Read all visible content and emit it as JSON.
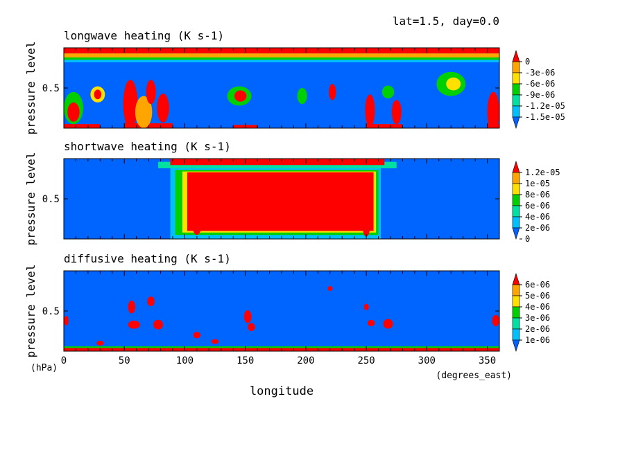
{
  "header": {
    "info": "lat=1.5, day=0.0"
  },
  "colors": {
    "red": "#ff0000",
    "orange": "#ffa500",
    "yellow": "#ffe000",
    "green": "#00d000",
    "teal": "#00e0a0",
    "cyan": "#00bfff",
    "blue": "#0064ff"
  },
  "chart_data": [
    {
      "type": "heatmap",
      "title": "longwave heating (K s-1)",
      "ylabel": "pressure level",
      "yticks": [
        "0.5"
      ],
      "xlabel": "",
      "xlim": [
        0,
        360
      ],
      "colorbar": {
        "labels": [
          "0",
          "-3e-06",
          "-6e-06",
          "-9e-06",
          "-1.2e-05",
          "-1.5e-05"
        ],
        "colors": [
          "#ff0000",
          "#ffa500",
          "#ffe000",
          "#00d000",
          "#00e0a0",
          "#00bfff",
          "#0064ff"
        ]
      },
      "background": "#0064ff",
      "bands": [
        {
          "y": [
            0.93,
            1.0
          ],
          "x": [
            0,
            360
          ],
          "color": "#ff0000"
        },
        {
          "y": [
            0.88,
            0.93
          ],
          "x": [
            0,
            360
          ],
          "color": "#ffa500"
        },
        {
          "y": [
            0.85,
            0.88
          ],
          "x": [
            0,
            360
          ],
          "color": "#00d000"
        },
        {
          "y": [
            0.82,
            0.85
          ],
          "x": [
            0,
            360
          ],
          "color": "#00bfff"
        },
        {
          "y": [
            0.0,
            0.05
          ],
          "x": [
            0,
            30
          ],
          "color": "#ff0000"
        },
        {
          "y": [
            0.0,
            0.06
          ],
          "x": [
            50,
            90
          ],
          "color": "#ff0000"
        },
        {
          "y": [
            0.0,
            0.04
          ],
          "x": [
            140,
            160
          ],
          "color": "#ff0000"
        },
        {
          "y": [
            0.0,
            0.05
          ],
          "x": [
            250,
            280
          ],
          "color": "#ff0000"
        },
        {
          "y": [
            0.0,
            0.05
          ],
          "x": [
            350,
            360
          ],
          "color": "#ff0000"
        }
      ],
      "blobs": [
        {
          "x": 8,
          "y": 0.25,
          "rx": 8,
          "ry": 0.2,
          "color": "#00d000"
        },
        {
          "x": 8,
          "y": 0.2,
          "rx": 5,
          "ry": 0.12,
          "color": "#ff0000"
        },
        {
          "x": 28,
          "y": 0.42,
          "rx": 6,
          "ry": 0.1,
          "color": "#ffe000"
        },
        {
          "x": 28,
          "y": 0.42,
          "rx": 3,
          "ry": 0.06,
          "color": "#ff0000"
        },
        {
          "x": 55,
          "y": 0.3,
          "rx": 6,
          "ry": 0.3,
          "color": "#ff0000"
        },
        {
          "x": 66,
          "y": 0.2,
          "rx": 7,
          "ry": 0.2,
          "color": "#ffa500"
        },
        {
          "x": 72,
          "y": 0.45,
          "rx": 4,
          "ry": 0.15,
          "color": "#ff0000"
        },
        {
          "x": 82,
          "y": 0.25,
          "rx": 5,
          "ry": 0.18,
          "color": "#ff0000"
        },
        {
          "x": 145,
          "y": 0.4,
          "rx": 10,
          "ry": 0.12,
          "color": "#00d000"
        },
        {
          "x": 146,
          "y": 0.4,
          "rx": 5,
          "ry": 0.07,
          "color": "#ff0000"
        },
        {
          "x": 197,
          "y": 0.4,
          "rx": 4,
          "ry": 0.1,
          "color": "#00d000"
        },
        {
          "x": 222,
          "y": 0.45,
          "rx": 3,
          "ry": 0.1,
          "color": "#ff0000"
        },
        {
          "x": 253,
          "y": 0.22,
          "rx": 4,
          "ry": 0.2,
          "color": "#ff0000"
        },
        {
          "x": 268,
          "y": 0.45,
          "rx": 5,
          "ry": 0.08,
          "color": "#00d000"
        },
        {
          "x": 275,
          "y": 0.2,
          "rx": 4,
          "ry": 0.15,
          "color": "#ff0000"
        },
        {
          "x": 320,
          "y": 0.55,
          "rx": 12,
          "ry": 0.15,
          "color": "#00d000"
        },
        {
          "x": 322,
          "y": 0.55,
          "rx": 6,
          "ry": 0.08,
          "color": "#ffe000"
        },
        {
          "x": 355,
          "y": 0.2,
          "rx": 5,
          "ry": 0.25,
          "color": "#ff0000"
        }
      ]
    },
    {
      "type": "heatmap",
      "title": "shortwave heating (K s-1)",
      "ylabel": "pressure level",
      "yticks": [
        "0.5"
      ],
      "xlabel": "",
      "xlim": [
        0,
        360
      ],
      "colorbar": {
        "labels": [
          "1.2e-05",
          "1e-05",
          "8e-06",
          "6e-06",
          "4e-06",
          "2e-06",
          "0"
        ],
        "colors": [
          "#ff0000",
          "#ffa500",
          "#ffe000",
          "#00d000",
          "#00e0a0",
          "#00bfff",
          "#0064ff"
        ]
      },
      "background": "#0064ff",
      "bands": [
        {
          "y": [
            0.0,
            0.88
          ],
          "x": [
            88,
            262
          ],
          "color": "#00bfff"
        },
        {
          "y": [
            0.05,
            0.86
          ],
          "x": [
            92,
            260
          ],
          "color": "#00d000"
        },
        {
          "y": [
            0.08,
            0.84
          ],
          "x": [
            98,
            258
          ],
          "color": "#ffe000"
        },
        {
          "y": [
            0.1,
            0.83
          ],
          "x": [
            102,
            256
          ],
          "color": "#ff0000"
        },
        {
          "y": [
            0.88,
            0.96
          ],
          "x": [
            78,
            275
          ],
          "color": "#00e0a0"
        },
        {
          "y": [
            0.92,
            1.0
          ],
          "x": [
            88,
            265
          ],
          "color": "#ff0000"
        }
      ],
      "blobs": [
        {
          "x": 250,
          "y": 0.15,
          "rx": 3,
          "ry": 0.12,
          "color": "#ff0000"
        },
        {
          "x": 110,
          "y": 0.2,
          "rx": 4,
          "ry": 0.15,
          "color": "#ff0000"
        }
      ]
    },
    {
      "type": "heatmap",
      "title": "diffusive heating (K s-1)",
      "ylabel": "pressure level",
      "yticks": [
        "0.5"
      ],
      "xlabel": "longitude",
      "xunits": "(degrees_east)",
      "yunits": "(hPa)",
      "xticks": [
        0,
        50,
        100,
        150,
        200,
        250,
        300,
        350
      ],
      "xlim": [
        0,
        360
      ],
      "colorbar": {
        "labels": [
          "6e-06",
          "5e-06",
          "4e-06",
          "3e-06",
          "2e-06",
          "1e-06"
        ],
        "colors": [
          "#ff0000",
          "#ffa500",
          "#ffe000",
          "#00d000",
          "#00e0a0",
          "#00bfff",
          "#0064ff"
        ]
      },
      "background": "#0064ff",
      "bands": [
        {
          "y": [
            0.0,
            0.04
          ],
          "x": [
            0,
            360
          ],
          "color": "#ff0000"
        },
        {
          "y": [
            0.04,
            0.06
          ],
          "x": [
            0,
            360
          ],
          "color": "#00d000"
        }
      ],
      "blobs": [
        {
          "x": 56,
          "y": 0.55,
          "rx": 3,
          "ry": 0.08,
          "color": "#ff0000"
        },
        {
          "x": 72,
          "y": 0.62,
          "rx": 3,
          "ry": 0.06,
          "color": "#ff0000"
        },
        {
          "x": 58,
          "y": 0.33,
          "rx": 5,
          "ry": 0.05,
          "color": "#ff0000"
        },
        {
          "x": 78,
          "y": 0.33,
          "rx": 4,
          "ry": 0.06,
          "color": "#ff0000"
        },
        {
          "x": 152,
          "y": 0.43,
          "rx": 3,
          "ry": 0.08,
          "color": "#ff0000"
        },
        {
          "x": 155,
          "y": 0.3,
          "rx": 3,
          "ry": 0.05,
          "color": "#ff0000"
        },
        {
          "x": 250,
          "y": 0.55,
          "rx": 2,
          "ry": 0.04,
          "color": "#ff0000"
        },
        {
          "x": 254,
          "y": 0.35,
          "rx": 3,
          "ry": 0.04,
          "color": "#ff0000"
        },
        {
          "x": 268,
          "y": 0.34,
          "rx": 4,
          "ry": 0.06,
          "color": "#ff0000"
        },
        {
          "x": 357,
          "y": 0.38,
          "rx": 3,
          "ry": 0.07,
          "color": "#ff0000"
        },
        {
          "x": 2,
          "y": 0.38,
          "rx": 2,
          "ry": 0.06,
          "color": "#ff0000"
        },
        {
          "x": 125,
          "y": 0.12,
          "rx": 3,
          "ry": 0.03,
          "color": "#ff0000"
        },
        {
          "x": 30,
          "y": 0.1,
          "rx": 3,
          "ry": 0.03,
          "color": "#ff0000"
        },
        {
          "x": 110,
          "y": 0.2,
          "rx": 3,
          "ry": 0.04,
          "color": "#ff0000"
        },
        {
          "x": 220,
          "y": 0.78,
          "rx": 2,
          "ry": 0.03,
          "color": "#ff0000"
        }
      ]
    }
  ]
}
